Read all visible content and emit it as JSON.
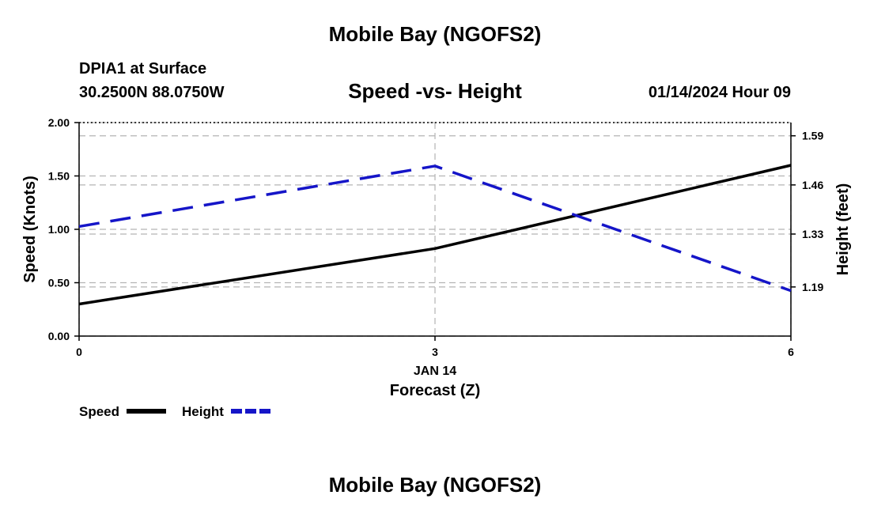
{
  "header": {
    "title": "Mobile Bay (NGOFS2)",
    "station": "DPIA1 at Surface",
    "coordinates": "30.2500N  88.0750W",
    "datetime": "01/14/2024 Hour 09",
    "footer_title": "Mobile Bay (NGOFS2)"
  },
  "colors": {
    "speed": "#000000",
    "height": "#1515c8",
    "grid": "#b4b4b4"
  },
  "chart_data": {
    "type": "line",
    "title": "Speed -vs- Height",
    "xlabel": "Forecast (Z)",
    "x_sublabel": "JAN 14",
    "x": [
      0,
      3,
      6
    ],
    "xlim": [
      0,
      6
    ],
    "x_ticks": [
      "0",
      "3",
      "6"
    ],
    "y_left": {
      "label": "Speed (Knots)",
      "lim": [
        0,
        2
      ],
      "ticks": [
        "0.00",
        "0.50",
        "1.00",
        "1.50",
        "2.00"
      ]
    },
    "y_right": {
      "label": "Height (feet)",
      "lim": [
        1.06,
        1.625
      ],
      "ticks": [
        "1.19",
        "1.33",
        "1.46",
        "1.59"
      ]
    },
    "series": [
      {
        "name": "Speed",
        "axis": "left",
        "style": "solid",
        "values": [
          0.3,
          0.82,
          1.6
        ]
      },
      {
        "name": "Height",
        "axis": "right",
        "style": "dashed",
        "values": [
          1.35,
          1.51,
          1.18
        ]
      }
    ],
    "legend": [
      {
        "label": "Speed",
        "series": "Speed"
      },
      {
        "label": "Height",
        "series": "Height"
      }
    ],
    "grid": true,
    "legend_position": "bottom-left"
  }
}
